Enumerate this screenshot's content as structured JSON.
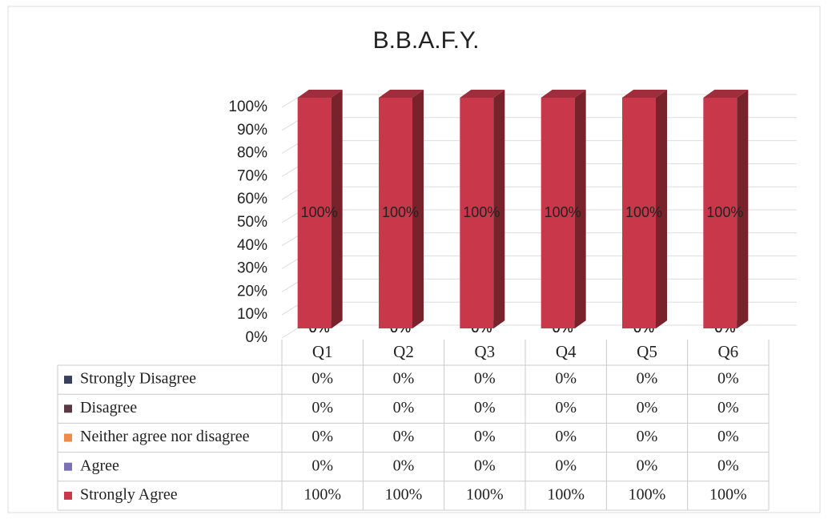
{
  "chart_data": {
    "type": "bar3d_stacked",
    "title": "B.B.A.F.Y.",
    "categories": [
      "Q1",
      "Q2",
      "Q3",
      "Q4",
      "Q5",
      "Q6"
    ],
    "series": [
      {
        "name": "Strongly Disagree",
        "color": "#3b3f5e",
        "values": [
          0,
          0,
          0,
          0,
          0,
          0
        ],
        "value_labels": [
          "0%",
          "0%",
          "0%",
          "0%",
          "0%",
          "0%"
        ]
      },
      {
        "name": "Disagree",
        "color": "#5b3a48",
        "values": [
          0,
          0,
          0,
          0,
          0,
          0
        ],
        "value_labels": [
          "0%",
          "0%",
          "0%",
          "0%",
          "0%",
          "0%"
        ]
      },
      {
        "name": "Neither agree nor disagree",
        "color": "#f08a4b",
        "values": [
          0,
          0,
          0,
          0,
          0,
          0
        ],
        "value_labels": [
          "0%",
          "0%",
          "0%",
          "0%",
          "0%",
          "0%"
        ]
      },
      {
        "name": "Agree",
        "color": "#7b6fb5",
        "values": [
          0,
          0,
          0,
          0,
          0,
          0
        ],
        "value_labels": [
          "0%",
          "0%",
          "0%",
          "0%",
          "0%",
          "0%"
        ]
      },
      {
        "name": "Strongly Agree",
        "color": "#c8384a",
        "values": [
          100,
          100,
          100,
          100,
          100,
          100
        ],
        "value_labels": [
          "100%",
          "100%",
          "100%",
          "100%",
          "100%",
          "100%"
        ]
      }
    ],
    "ylim": [
      0,
      100
    ],
    "yticks": [
      {
        "value": 0,
        "label": "0%"
      },
      {
        "value": 10,
        "label": "10%"
      },
      {
        "value": 20,
        "label": "20%"
      },
      {
        "value": 30,
        "label": "30%"
      },
      {
        "value": 40,
        "label": "40%"
      },
      {
        "value": 50,
        "label": "50%"
      },
      {
        "value": 60,
        "label": "60%"
      },
      {
        "value": 70,
        "label": "70%"
      },
      {
        "value": 80,
        "label": "80%"
      },
      {
        "value": 90,
        "label": "90%"
      },
      {
        "value": 100,
        "label": "100%"
      }
    ],
    "grid": true
  }
}
